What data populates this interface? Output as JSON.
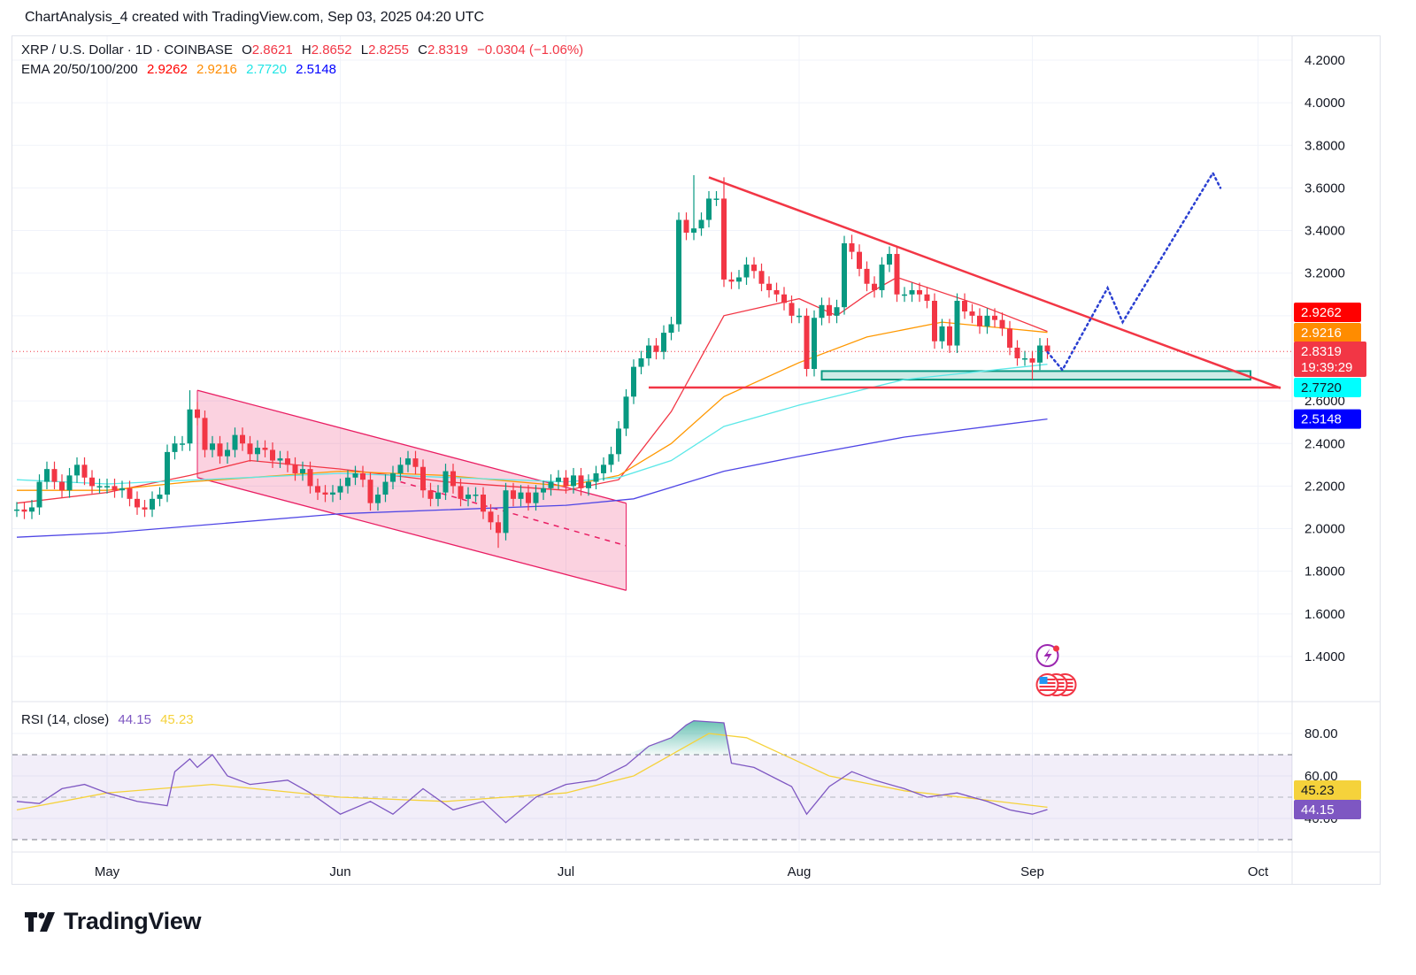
{
  "attribution": "ChartAnalysis_4 created with TradingView.com, Sep 03, 2025 04:20 UTC",
  "legend": {
    "symbol": "XRP / U.S. Dollar · 1D · COINBASE",
    "o_label": "O",
    "o": "2.8621",
    "h_label": "H",
    "h": "2.8652",
    "l_label": "L",
    "l": "2.8255",
    "c_label": "C",
    "c": "2.8319",
    "change": "−0.0304 (−1.06%)",
    "ema_label": "EMA 20/50/100/200",
    "ema20": "2.9262",
    "ema50": "2.9216",
    "ema100": "2.7720",
    "ema200": "2.5148",
    "rsi_label": "RSI (14, close)",
    "rsi": "44.15",
    "rsi_ma": "45.23"
  },
  "logo": {
    "text": "TradingView"
  },
  "colors": {
    "up": "#089981",
    "down": "#f23645",
    "ema20": "#f23645",
    "ema50": "#ff9800",
    "ema100": "#5ce8e8",
    "ema200": "#4f46e5",
    "rsi": "#7e57c2",
    "rsi_ma": "#f5d23b",
    "channel": "#e91e63",
    "triangle": "#f23645",
    "support_zone": "#089981",
    "projection": "#2a3fd1"
  },
  "price_labels": [
    {
      "text": "2.9262",
      "value": 2.9262,
      "bg": "#ff0000",
      "fg": "#ffffff"
    },
    {
      "text": "2.9216",
      "value": 2.9216,
      "bg": "#ff8c00",
      "fg": "#ffffff"
    },
    {
      "text": "2.8319",
      "sub": "19:39:29",
      "value": 2.8319,
      "bg": "#f23645",
      "fg": "#ffffff"
    },
    {
      "text": "2.7720",
      "value": 2.772,
      "bg": "#00ffff",
      "fg": "#131722"
    },
    {
      "text": "2.5148",
      "value": 2.5148,
      "bg": "#0000ff",
      "fg": "#ffffff"
    }
  ],
  "rsi_labels": [
    {
      "text": "45.23",
      "value": 45.23,
      "bg": "#f5d23b",
      "fg": "#131722"
    },
    {
      "text": "44.15",
      "value": 44.15,
      "bg": "#7e57c2",
      "fg": "#ffffff"
    }
  ],
  "events": [
    {
      "icon": "lightning-event-icon",
      "date": "2025-09-03"
    },
    {
      "icon": "us-flag-economic-event-icon",
      "date": "2025-09-03"
    }
  ],
  "chart_data": {
    "type": "candlestick",
    "symbol": "XRP / U.S. Dollar",
    "timeframe": "1D",
    "exchange": "COINBASE",
    "x_ticks": [
      {
        "label": "May",
        "date": "2025-05-01"
      },
      {
        "label": "Jun",
        "date": "2025-06-01"
      },
      {
        "label": "Jul",
        "date": "2025-07-01"
      },
      {
        "label": "Aug",
        "date": "2025-08-01"
      },
      {
        "label": "Sep",
        "date": "2025-09-01"
      },
      {
        "label": "Oct",
        "date": "2025-10-01"
      }
    ],
    "y_ticks": [
      "4.2000",
      "4.0000",
      "3.8000",
      "3.6000",
      "3.4000",
      "3.2000",
      "2.6000",
      "2.4000",
      "2.2000",
      "2.0000",
      "1.8000",
      "1.6000",
      "1.4000"
    ],
    "y_grid": [
      4.2,
      4.0,
      3.8,
      3.6,
      3.4,
      3.2,
      3.0,
      2.8,
      2.6,
      2.4,
      2.2,
      2.0,
      1.8,
      1.6,
      1.4
    ],
    "ylim": [
      1.24,
      4.32
    ],
    "candles": [
      {
        "from": "2025-04-19",
        "close": [
          2.09,
          2.08,
          2.1,
          2.22,
          2.28,
          2.22,
          2.18,
          2.25,
          2.3,
          2.24,
          2.2,
          2.2
        ]
      },
      {
        "from": "2025-05-01",
        "close": [
          2.2,
          2.18,
          2.19,
          2.14,
          2.1,
          2.09,
          2.14,
          2.16,
          2.36,
          2.4,
          2.4,
          2.56,
          2.52,
          2.37,
          2.4,
          2.34,
          2.37,
          2.44,
          2.4,
          2.35,
          2.38,
          2.37,
          2.32,
          2.33,
          2.3,
          2.26,
          2.28,
          2.2,
          2.17,
          2.16,
          2.17
        ]
      },
      {
        "from": "2025-06-01",
        "close": [
          2.2,
          2.24,
          2.26,
          2.23,
          2.12,
          2.16,
          2.22,
          2.26,
          2.3,
          2.33,
          2.29,
          2.18,
          2.14,
          2.17,
          2.27,
          2.2,
          2.14,
          2.16,
          2.16,
          2.08,
          2.03,
          1.98,
          2.18,
          2.14,
          2.17,
          2.12,
          2.17,
          2.19,
          2.22,
          2.24
        ]
      },
      {
        "from": "2025-07-01",
        "close": [
          2.2,
          2.25,
          2.19,
          2.22,
          2.26,
          2.3,
          2.35,
          2.47,
          2.62,
          2.76,
          2.8,
          2.86,
          2.83,
          2.92,
          2.96,
          3.45,
          3.39,
          3.41,
          3.45,
          3.55,
          3.55,
          3.17,
          3.16,
          3.18,
          3.24,
          3.21,
          3.15,
          3.12,
          3.1,
          3.06,
          3.0
        ]
      },
      {
        "from": "2025-08-01",
        "close": [
          3.0,
          2.75,
          2.99,
          3.05,
          3.0,
          3.04,
          3.34,
          3.3,
          3.22,
          3.15,
          3.12,
          3.24,
          3.29,
          3.1,
          3.1,
          3.12,
          3.1,
          3.07,
          2.88,
          2.95,
          2.86,
          3.07,
          3.02,
          3.0,
          2.95,
          3.0,
          2.98,
          2.94,
          2.85,
          2.8,
          2.8
        ]
      },
      {
        "from": "2025-09-01",
        "close": [
          2.78,
          2.86,
          2.8319
        ]
      }
    ],
    "notable_wicks": [
      {
        "date": "2025-05-12",
        "high": 2.65
      },
      {
        "date": "2025-06-22",
        "low": 1.91
      },
      {
        "date": "2025-07-18",
        "high": 3.66
      },
      {
        "date": "2025-07-22",
        "high": 3.65
      },
      {
        "date": "2025-08-08",
        "high": 3.38
      },
      {
        "date": "2025-09-01",
        "low": 2.7
      }
    ],
    "ema": [
      {
        "name": "EMA 20",
        "color_key": "ema20",
        "points": [
          [
            "2025-04-19",
            2.12
          ],
          [
            "2025-05-01",
            2.17
          ],
          [
            "2025-05-12",
            2.25
          ],
          [
            "2025-05-20",
            2.32
          ],
          [
            "2025-06-01",
            2.28
          ],
          [
            "2025-06-15",
            2.22
          ],
          [
            "2025-07-01",
            2.18
          ],
          [
            "2025-07-08",
            2.23
          ],
          [
            "2025-07-15",
            2.55
          ],
          [
            "2025-07-22",
            3.0
          ],
          [
            "2025-08-01",
            3.08
          ],
          [
            "2025-08-06",
            3.0
          ],
          [
            "2025-08-10",
            3.1
          ],
          [
            "2025-08-14",
            3.18
          ],
          [
            "2025-08-25",
            3.05
          ],
          [
            "2025-09-03",
            2.9262
          ]
        ]
      },
      {
        "name": "EMA 50",
        "color_key": "ema50",
        "points": [
          [
            "2025-04-19",
            2.18
          ],
          [
            "2025-05-01",
            2.18
          ],
          [
            "2025-05-12",
            2.22
          ],
          [
            "2025-06-01",
            2.27
          ],
          [
            "2025-06-15",
            2.25
          ],
          [
            "2025-07-01",
            2.2
          ],
          [
            "2025-07-08",
            2.25
          ],
          [
            "2025-07-15",
            2.4
          ],
          [
            "2025-07-22",
            2.62
          ],
          [
            "2025-08-01",
            2.78
          ],
          [
            "2025-08-10",
            2.9
          ],
          [
            "2025-08-20",
            2.97
          ],
          [
            "2025-09-03",
            2.9216
          ]
        ]
      },
      {
        "name": "EMA 100",
        "color_key": "ema100",
        "points": [
          [
            "2025-04-19",
            2.23
          ],
          [
            "2025-05-01",
            2.21
          ],
          [
            "2025-06-01",
            2.26
          ],
          [
            "2025-07-01",
            2.22
          ],
          [
            "2025-07-08",
            2.24
          ],
          [
            "2025-07-15",
            2.32
          ],
          [
            "2025-07-22",
            2.48
          ],
          [
            "2025-08-01",
            2.58
          ],
          [
            "2025-08-15",
            2.7
          ],
          [
            "2025-09-03",
            2.772
          ]
        ]
      },
      {
        "name": "EMA 200",
        "color_key": "ema200",
        "points": [
          [
            "2025-04-19",
            1.96
          ],
          [
            "2025-05-01",
            1.98
          ],
          [
            "2025-06-01",
            2.07
          ],
          [
            "2025-07-01",
            2.11
          ],
          [
            "2025-07-10",
            2.14
          ],
          [
            "2025-07-22",
            2.27
          ],
          [
            "2025-08-01",
            2.34
          ],
          [
            "2025-08-15",
            2.43
          ],
          [
            "2025-09-03",
            2.5148
          ]
        ]
      }
    ],
    "drawings": {
      "channel_upper": [
        [
          "2025-05-13",
          2.65
        ],
        [
          "2025-07-09",
          2.12
        ]
      ],
      "channel_lower": [
        [
          "2025-05-13",
          2.24
        ],
        [
          "2025-07-09",
          1.71
        ]
      ],
      "channel_mid_dashed": [
        [
          "2025-06-09",
          2.22
        ],
        [
          "2025-07-09",
          1.92
        ]
      ],
      "triangle_upper": [
        [
          "2025-07-20",
          3.65
        ],
        [
          "2025-10-04",
          2.66
        ]
      ],
      "triangle_base": [
        [
          "2025-07-12",
          2.663
        ],
        [
          "2025-10-04",
          2.663
        ]
      ],
      "support_zone": {
        "from": "2025-08-04",
        "to": "2025-09-30",
        "low": 2.7,
        "high": 2.74
      },
      "projection_dotted": [
        [
          "2025-09-03",
          2.83
        ],
        [
          "2025-09-05",
          2.745
        ],
        [
          "2025-09-11",
          3.13
        ],
        [
          "2025-09-13",
          2.97
        ],
        [
          "2025-09-25",
          3.67
        ],
        [
          "2025-09-26",
          3.6
        ]
      ],
      "last_price_line": 2.8319
    },
    "rsi": {
      "length": 14,
      "source": "close",
      "ylim": [
        27,
        93
      ],
      "y_ticks": [
        "80.00",
        "60.00",
        "40.00"
      ],
      "bands": {
        "upper": 70,
        "middle": 50,
        "lower": 30
      },
      "points": [
        [
          "2025-04-19",
          48
        ],
        [
          "2025-04-22",
          47
        ],
        [
          "2025-04-25",
          54
        ],
        [
          "2025-04-28",
          56
        ],
        [
          "2025-05-01",
          52
        ],
        [
          "2025-05-05",
          48
        ],
        [
          "2025-05-09",
          46
        ],
        [
          "2025-05-10",
          62
        ],
        [
          "2025-05-12",
          68
        ],
        [
          "2025-05-13",
          64
        ],
        [
          "2025-05-15",
          70
        ],
        [
          "2025-05-17",
          60
        ],
        [
          "2025-05-20",
          56
        ],
        [
          "2025-05-25",
          58
        ],
        [
          "2025-05-28",
          52
        ],
        [
          "2025-06-01",
          42
        ],
        [
          "2025-06-05",
          48
        ],
        [
          "2025-06-08",
          42
        ],
        [
          "2025-06-12",
          54
        ],
        [
          "2025-06-16",
          44
        ],
        [
          "2025-06-20",
          48
        ],
        [
          "2025-06-23",
          38
        ],
        [
          "2025-06-27",
          50
        ],
        [
          "2025-07-01",
          56
        ],
        [
          "2025-07-05",
          58
        ],
        [
          "2025-07-09",
          65
        ],
        [
          "2025-07-12",
          74
        ],
        [
          "2025-07-15",
          78
        ],
        [
          "2025-07-17",
          84
        ],
        [
          "2025-07-18",
          86
        ],
        [
          "2025-07-22",
          85
        ],
        [
          "2025-07-23",
          66
        ],
        [
          "2025-07-26",
          64
        ],
        [
          "2025-07-31",
          55
        ],
        [
          "2025-08-02",
          42
        ],
        [
          "2025-08-05",
          55
        ],
        [
          "2025-08-08",
          62
        ],
        [
          "2025-08-11",
          58
        ],
        [
          "2025-08-15",
          54
        ],
        [
          "2025-08-18",
          50
        ],
        [
          "2025-08-22",
          52
        ],
        [
          "2025-08-26",
          48
        ],
        [
          "2025-08-29",
          44
        ],
        [
          "2025-09-01",
          42
        ],
        [
          "2025-09-03",
          44.15
        ]
      ],
      "ma_points": [
        [
          "2025-04-19",
          44
        ],
        [
          "2025-05-01",
          52
        ],
        [
          "2025-05-15",
          56
        ],
        [
          "2025-06-01",
          50
        ],
        [
          "2025-06-15",
          48
        ],
        [
          "2025-07-01",
          52
        ],
        [
          "2025-07-10",
          60
        ],
        [
          "2025-07-20",
          80
        ],
        [
          "2025-07-25",
          78
        ],
        [
          "2025-08-05",
          60
        ],
        [
          "2025-08-15",
          53
        ],
        [
          "2025-08-25",
          49
        ],
        [
          "2025-09-03",
          45.23
        ]
      ]
    }
  }
}
